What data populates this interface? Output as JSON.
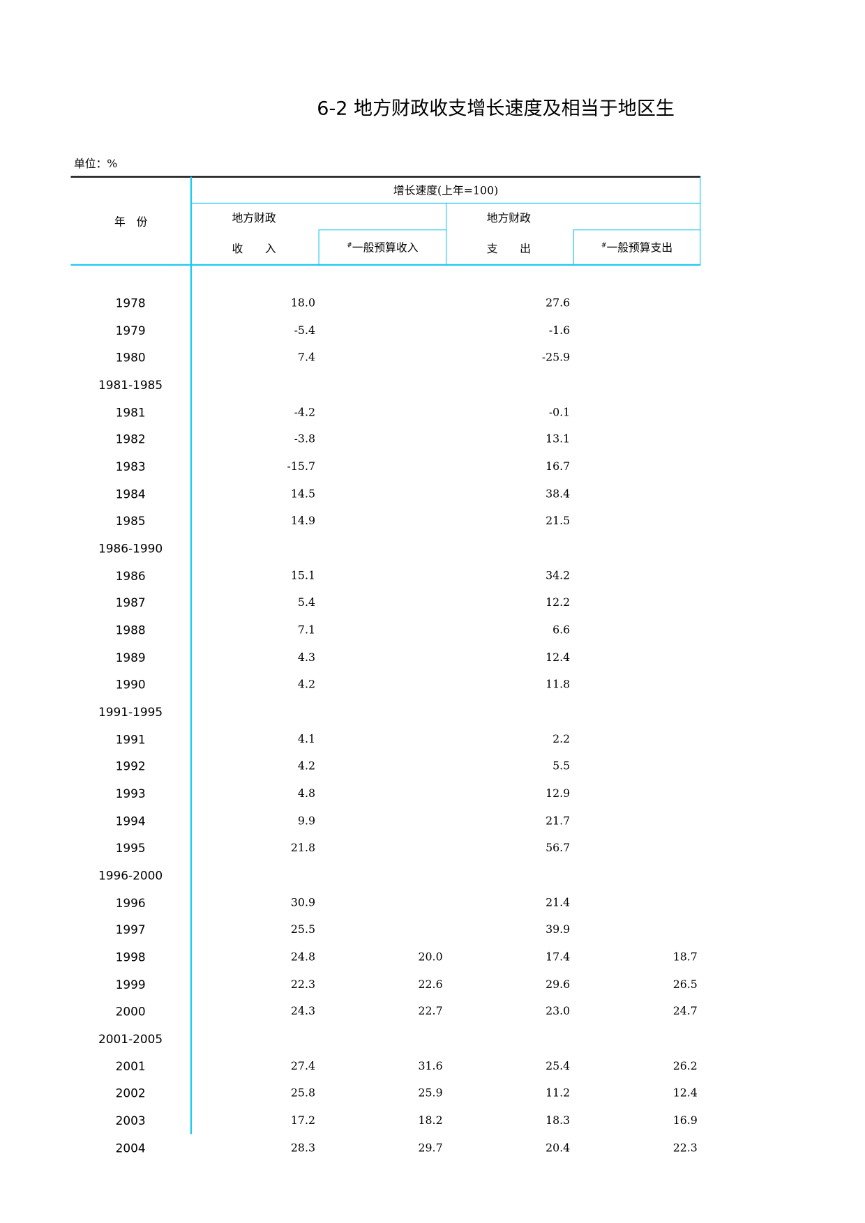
{
  "title": "6-2  地方财政收支增长速度及相当于地区生",
  "unit": "单位：%",
  "header": {
    "year": "年　份",
    "group": "增长速度(上年=100)",
    "revenue_top": "地方财政",
    "revenue_bottom": "收　　入",
    "revenue_general_mark": "#",
    "revenue_general": "一般预算收入",
    "expenditure_top": "地方财政",
    "expenditure_bottom": "支　　出",
    "expenditure_general_mark": "#",
    "expenditure_general": "一般预算支出"
  },
  "table": {
    "rows": [
      [
        "1978",
        "18.0",
        null,
        "27.6",
        null
      ],
      [
        "1979",
        "-5.4",
        null,
        "-1.6",
        null
      ],
      [
        "1980",
        "7.4",
        null,
        "-25.9",
        null
      ],
      [
        "1981-1985",
        null,
        null,
        null,
        null
      ],
      [
        "1981",
        "-4.2",
        null,
        "-0.1",
        null
      ],
      [
        "1982",
        "-3.8",
        null,
        "13.1",
        null
      ],
      [
        "1983",
        "-15.7",
        null,
        "16.7",
        null
      ],
      [
        "1984",
        "14.5",
        null,
        "38.4",
        null
      ],
      [
        "1985",
        "14.9",
        null,
        "21.5",
        null
      ],
      [
        "1986-1990",
        null,
        null,
        null,
        null
      ],
      [
        "1986",
        "15.1",
        null,
        "34.2",
        null
      ],
      [
        "1987",
        "5.4",
        null,
        "12.2",
        null
      ],
      [
        "1988",
        "7.1",
        null,
        "6.6",
        null
      ],
      [
        "1989",
        "4.3",
        null,
        "12.4",
        null
      ],
      [
        "1990",
        "4.2",
        null,
        "11.8",
        null
      ],
      [
        "1991-1995",
        null,
        null,
        null,
        null
      ],
      [
        "1991",
        "4.1",
        null,
        "2.2",
        null
      ],
      [
        "1992",
        "4.2",
        null,
        "5.5",
        null
      ],
      [
        "1993",
        "4.8",
        null,
        "12.9",
        null
      ],
      [
        "1994",
        "9.9",
        null,
        "21.7",
        null
      ],
      [
        "1995",
        "21.8",
        null,
        "56.7",
        null
      ],
      [
        "1996-2000",
        null,
        null,
        null,
        null
      ],
      [
        "1996",
        "30.9",
        null,
        "21.4",
        null
      ],
      [
        "1997",
        "25.5",
        null,
        "39.9",
        null
      ],
      [
        "1998",
        "24.8",
        "20.0",
        "17.4",
        "18.7"
      ],
      [
        "1999",
        "22.3",
        "22.6",
        "29.6",
        "26.5"
      ],
      [
        "2000",
        "24.3",
        "22.7",
        "23.0",
        "24.7"
      ],
      [
        "2001-2005",
        null,
        null,
        null,
        null
      ],
      [
        "2001",
        "27.4",
        "31.6",
        "25.4",
        "26.2"
      ],
      [
        "2002",
        "25.8",
        "25.9",
        "11.2",
        "12.4"
      ],
      [
        "2003",
        "17.2",
        "18.2",
        "18.3",
        "16.9"
      ],
      [
        "2004",
        "28.3",
        "29.7",
        "20.4",
        "22.3"
      ]
    ]
  }
}
